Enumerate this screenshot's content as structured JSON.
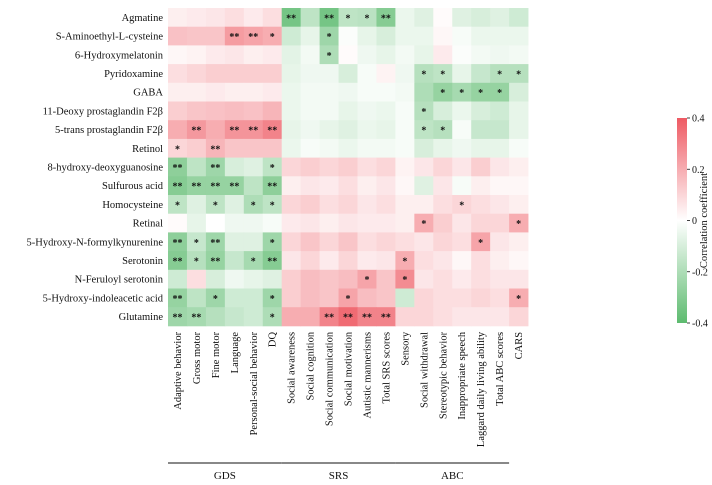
{
  "chart_data": {
    "type": "heatmap",
    "rows": [
      "Agmatine",
      "S-Aminoethyl-L-cysteine",
      "6-Hydroxymelatonin",
      "Pyridoxamine",
      "GABA",
      "11-Deoxy prostaglandin F2β",
      "5-trans prostaglandin F2β",
      "Retinol",
      "8-hydroxy-deoxyguanosine",
      "Sulfurous acid",
      "Homocysteine",
      "Retinal",
      "5-Hydroxy-N-formylkynurenine",
      "Serotonin",
      "N-Feruloyl serotonin",
      "5-Hydroxy-indoleacetic acid",
      "Glutamine"
    ],
    "columns": [
      "Adaptive behavior",
      "Gross motor",
      "Fine motor",
      "Language",
      "Personal-social behavior",
      "DQ",
      "Social awareness",
      "Social cognition",
      "Social communication",
      "Social motivation",
      "Autistic mannerisms",
      "Total SRS scores",
      "Sensory",
      "Social withdrawal",
      "Stereotypic behavior",
      "Inappropriate speech",
      "Laggard daily living ability",
      "Total ABC scores",
      "CARS"
    ],
    "groups": [
      {
        "label": "GDS",
        "start": 0,
        "end": 5
      },
      {
        "label": "SRS",
        "start": 6,
        "end": 11
      },
      {
        "label": "ABC",
        "start": 12,
        "end": 17
      }
    ],
    "values": [
      [
        0.04,
        0.05,
        0.06,
        0.08,
        0.05,
        0.08,
        -0.34,
        -0.16,
        -0.34,
        -0.16,
        -0.17,
        -0.3,
        -0.05,
        -0.08,
        0.01,
        -0.08,
        -0.1,
        -0.08,
        -0.12
      ],
      [
        0.15,
        0.14,
        0.14,
        0.24,
        0.22,
        0.2,
        -0.12,
        -0.06,
        -0.24,
        -0.01,
        -0.06,
        -0.1,
        -0.05,
        -0.05,
        0.02,
        -0.02,
        -0.05,
        -0.05,
        -0.05
      ],
      [
        0.02,
        0.03,
        0.05,
        0.06,
        0.04,
        0.05,
        -0.07,
        -0.03,
        -0.2,
        0.01,
        -0.04,
        -0.06,
        -0.03,
        -0.06,
        0.05,
        -0.01,
        -0.03,
        -0.04,
        -0.03
      ],
      [
        0.08,
        0.1,
        0.12,
        0.12,
        0.12,
        0.12,
        -0.06,
        -0.04,
        -0.04,
        -0.1,
        -0.02,
        0.03,
        -0.04,
        -0.18,
        -0.16,
        -0.06,
        -0.14,
        -0.18,
        -0.18
      ],
      [
        0.04,
        0.04,
        0.05,
        0.04,
        0.04,
        0.05,
        -0.05,
        -0.03,
        -0.03,
        -0.04,
        -0.02,
        -0.02,
        -0.03,
        -0.2,
        -0.26,
        -0.22,
        -0.26,
        -0.26,
        -0.1
      ],
      [
        0.12,
        0.14,
        0.15,
        0.16,
        0.15,
        0.18,
        -0.05,
        -0.03,
        -0.03,
        -0.06,
        -0.04,
        -0.05,
        -0.02,
        -0.18,
        -0.1,
        -0.05,
        -0.1,
        -0.12,
        -0.06
      ],
      [
        0.2,
        0.25,
        0.2,
        0.26,
        0.26,
        0.3,
        -0.06,
        -0.04,
        -0.06,
        -0.08,
        -0.05,
        -0.06,
        -0.02,
        -0.16,
        -0.18,
        -0.02,
        -0.14,
        -0.14,
        -0.06
      ],
      [
        0.1,
        0.12,
        0.18,
        0.14,
        0.14,
        0.14,
        -0.05,
        -0.02,
        -0.03,
        -0.05,
        -0.03,
        -0.03,
        -0.02,
        -0.1,
        -0.06,
        -0.04,
        -0.06,
        -0.06,
        -0.02
      ],
      [
        -0.28,
        -0.16,
        -0.24,
        -0.1,
        -0.08,
        -0.16,
        0.1,
        0.12,
        0.1,
        0.12,
        0.08,
        0.1,
        0.03,
        0.06,
        0.1,
        0.06,
        0.12,
        0.06,
        0.04
      ],
      [
        -0.3,
        -0.26,
        -0.26,
        -0.26,
        -0.16,
        -0.28,
        0.04,
        0.06,
        0.05,
        0.08,
        0.04,
        0.06,
        0.02,
        -0.08,
        0.06,
        -0.02,
        0.04,
        0.02,
        0.02
      ],
      [
        -0.16,
        -0.08,
        -0.16,
        -0.08,
        -0.2,
        -0.16,
        0.1,
        0.12,
        0.08,
        0.1,
        0.06,
        0.08,
        0.04,
        0.04,
        0.08,
        0.1,
        0.08,
        0.06,
        0.04
      ],
      [
        0.01,
        -0.06,
        0.0,
        -0.04,
        -0.04,
        -0.02,
        0.05,
        0.06,
        0.04,
        0.06,
        0.05,
        0.05,
        0.04,
        0.2,
        0.12,
        0.06,
        0.1,
        0.1,
        0.2
      ],
      [
        -0.28,
        -0.14,
        -0.24,
        -0.08,
        -0.08,
        -0.24,
        0.1,
        0.14,
        0.1,
        0.14,
        0.08,
        0.1,
        0.08,
        0.06,
        0.1,
        0.08,
        0.22,
        0.06,
        0.04
      ],
      [
        -0.3,
        -0.18,
        -0.26,
        -0.14,
        -0.22,
        -0.3,
        0.06,
        0.1,
        0.05,
        0.1,
        0.05,
        0.06,
        0.2,
        0.08,
        0.06,
        0.02,
        0.08,
        0.04,
        0.02
      ],
      [
        -0.12,
        0.08,
        -0.1,
        -0.04,
        -0.06,
        -0.08,
        0.12,
        0.16,
        0.14,
        0.16,
        0.22,
        0.14,
        0.28,
        0.06,
        0.08,
        0.05,
        0.08,
        0.06,
        0.06
      ],
      [
        -0.26,
        -0.16,
        -0.24,
        -0.12,
        -0.12,
        -0.24,
        0.12,
        0.16,
        0.14,
        0.22,
        0.16,
        0.14,
        -0.12,
        0.1,
        0.08,
        0.08,
        0.1,
        0.08,
        0.2
      ],
      [
        -0.24,
        -0.22,
        -0.18,
        -0.14,
        -0.12,
        -0.2,
        0.2,
        0.2,
        0.3,
        0.36,
        0.3,
        0.3,
        0.1,
        0.1,
        0.08,
        0.06,
        0.06,
        0.06,
        0.1
      ]
    ],
    "significance": [
      [
        "",
        "",
        "",
        "",
        "",
        "",
        "**",
        "",
        "**",
        "*",
        "*",
        "**",
        "",
        "",
        "",
        "",
        "",
        "",
        ""
      ],
      [
        "",
        "",
        "",
        "**",
        "**",
        "*",
        "",
        "",
        "*",
        "",
        "",
        "",
        "",
        "",
        "",
        "",
        "",
        "",
        ""
      ],
      [
        "",
        "",
        "",
        "",
        "",
        "",
        "",
        "",
        "*",
        "",
        "",
        "",
        "",
        "",
        "",
        "",
        "",
        "",
        ""
      ],
      [
        "",
        "",
        "",
        "",
        "",
        "",
        "",
        "",
        "",
        "",
        "",
        "",
        "",
        "*",
        "*",
        "",
        "",
        "*",
        "*"
      ],
      [
        "",
        "",
        "",
        "",
        "",
        "",
        "",
        "",
        "",
        "",
        "",
        "",
        "",
        "",
        "*",
        "*",
        "*",
        "*",
        ""
      ],
      [
        "",
        "",
        "",
        "",
        "",
        "",
        "",
        "",
        "",
        "",
        "",
        "",
        "",
        "*",
        "",
        "",
        "",
        "",
        ""
      ],
      [
        "",
        "**",
        "",
        "**",
        "**",
        "**",
        "",
        "",
        "",
        "",
        "",
        "",
        "",
        "*",
        "*",
        "",
        "",
        "",
        ""
      ],
      [
        "*",
        "",
        "**",
        "",
        "",
        "",
        "",
        "",
        "",
        "",
        "",
        "",
        "",
        "",
        "",
        "",
        "",
        "",
        ""
      ],
      [
        "**",
        "",
        "**",
        "",
        "",
        "*",
        "",
        "",
        "",
        "",
        "",
        "",
        "",
        "",
        "",
        "",
        "",
        "",
        ""
      ],
      [
        "**",
        "**",
        "**",
        "**",
        "",
        "**",
        "",
        "",
        "",
        "",
        "",
        "",
        "",
        "",
        "",
        "",
        "",
        "",
        ""
      ],
      [
        "*",
        "",
        "*",
        "",
        "*",
        "*",
        "",
        "",
        "",
        "",
        "",
        "",
        "",
        "",
        "",
        "*",
        "",
        "",
        ""
      ],
      [
        "",
        "",
        "",
        "",
        "",
        "",
        "",
        "",
        "",
        "",
        "",
        "",
        "",
        "*",
        "",
        "",
        "",
        "",
        "*"
      ],
      [
        "**",
        "*",
        "**",
        "",
        "",
        "*",
        "",
        "",
        "",
        "",
        "",
        "",
        "",
        "",
        "",
        "",
        "*",
        "",
        ""
      ],
      [
        "**",
        "*",
        "**",
        "",
        "*",
        "**",
        "",
        "",
        "",
        "",
        "",
        "",
        "*",
        "",
        "",
        "",
        "",
        "",
        ""
      ],
      [
        "",
        "",
        "",
        "",
        "",
        "",
        "",
        "",
        "",
        "",
        "*",
        "",
        "*",
        "",
        "",
        "",
        "",
        "",
        ""
      ],
      [
        "**",
        "",
        "*",
        "",
        "",
        "*",
        "",
        "",
        "",
        "*",
        "",
        "",
        "",
        "",
        "",
        "",
        "",
        "",
        "*"
      ],
      [
        "**",
        "**",
        "",
        "",
        "",
        "*",
        "",
        "",
        "**",
        "**",
        "**",
        "**",
        "",
        "",
        "",
        "",
        "",
        "",
        ""
      ]
    ],
    "colorbar": {
      "title": "Correlation coefficient",
      "range": [
        -0.4,
        0.4
      ],
      "ticks": [
        0.4,
        0.2,
        0,
        -0.2,
        -0.4
      ],
      "tick_labels": [
        "0.4",
        "0.2",
        "0",
        "-0.2",
        "-0.4"
      ],
      "low_color": "#5dbb6f",
      "mid_color": "#ffffff",
      "high_color": "#ee5a63"
    }
  }
}
